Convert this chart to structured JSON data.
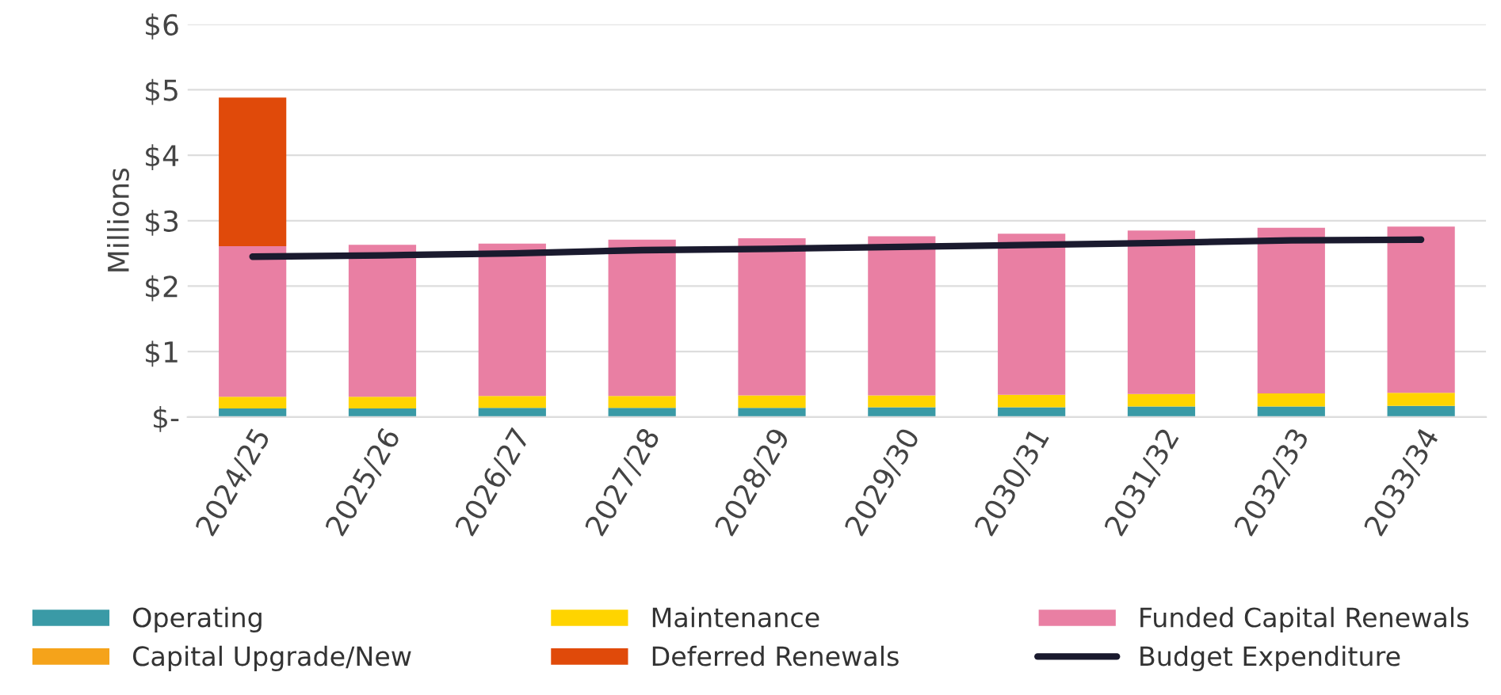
{
  "chart_data": {
    "type": "bar",
    "stacked": true,
    "ylabel": "Millions",
    "categories": [
      "2024/25",
      "2025/26",
      "2026/27",
      "2027/28",
      "2028/29",
      "2029/30",
      "2030/31",
      "2031/32",
      "2032/33",
      "2033/34"
    ],
    "series": [
      {
        "name": "Operating",
        "color": "#3a9aa6",
        "values": [
          0.13,
          0.13,
          0.14,
          0.14,
          0.14,
          0.15,
          0.15,
          0.16,
          0.16,
          0.17
        ]
      },
      {
        "name": "Maintenance",
        "color": "#ffd400",
        "values": [
          0.18,
          0.18,
          0.18,
          0.18,
          0.19,
          0.18,
          0.19,
          0.19,
          0.2,
          0.2
        ]
      },
      {
        "name": "Funded Capital Renewals",
        "color": "#e97fa3",
        "values": [
          2.3,
          2.32,
          2.33,
          2.39,
          2.4,
          2.43,
          2.46,
          2.5,
          2.53,
          2.54
        ]
      },
      {
        "name": "Capital Upgrade/New",
        "color": "#f5a31a",
        "values": [
          null,
          null,
          null,
          null,
          null,
          null,
          null,
          null,
          null,
          null
        ]
      },
      {
        "name": "Deferred Renewals",
        "color": "#e04a0a",
        "values": [
          2.27,
          null,
          null,
          null,
          null,
          null,
          null,
          null,
          null,
          null
        ]
      },
      {
        "name": "Budget Expenditure",
        "type": "line",
        "color": "#1a1a2e",
        "values": [
          2.45,
          2.47,
          2.5,
          2.55,
          2.57,
          2.6,
          2.63,
          2.66,
          2.7,
          2.71
        ]
      }
    ],
    "ylim": [
      0,
      6
    ],
    "yticks": [
      {
        "value": 0,
        "label": "$-"
      },
      {
        "value": 1,
        "label": "$1"
      },
      {
        "value": 2,
        "label": "$2"
      },
      {
        "value": 3,
        "label": "$3"
      },
      {
        "value": 4,
        "label": "$4"
      },
      {
        "value": 5,
        "label": "$5"
      },
      {
        "value": 6,
        "label": "$6"
      }
    ],
    "grid": "y",
    "legend": "bottom"
  }
}
